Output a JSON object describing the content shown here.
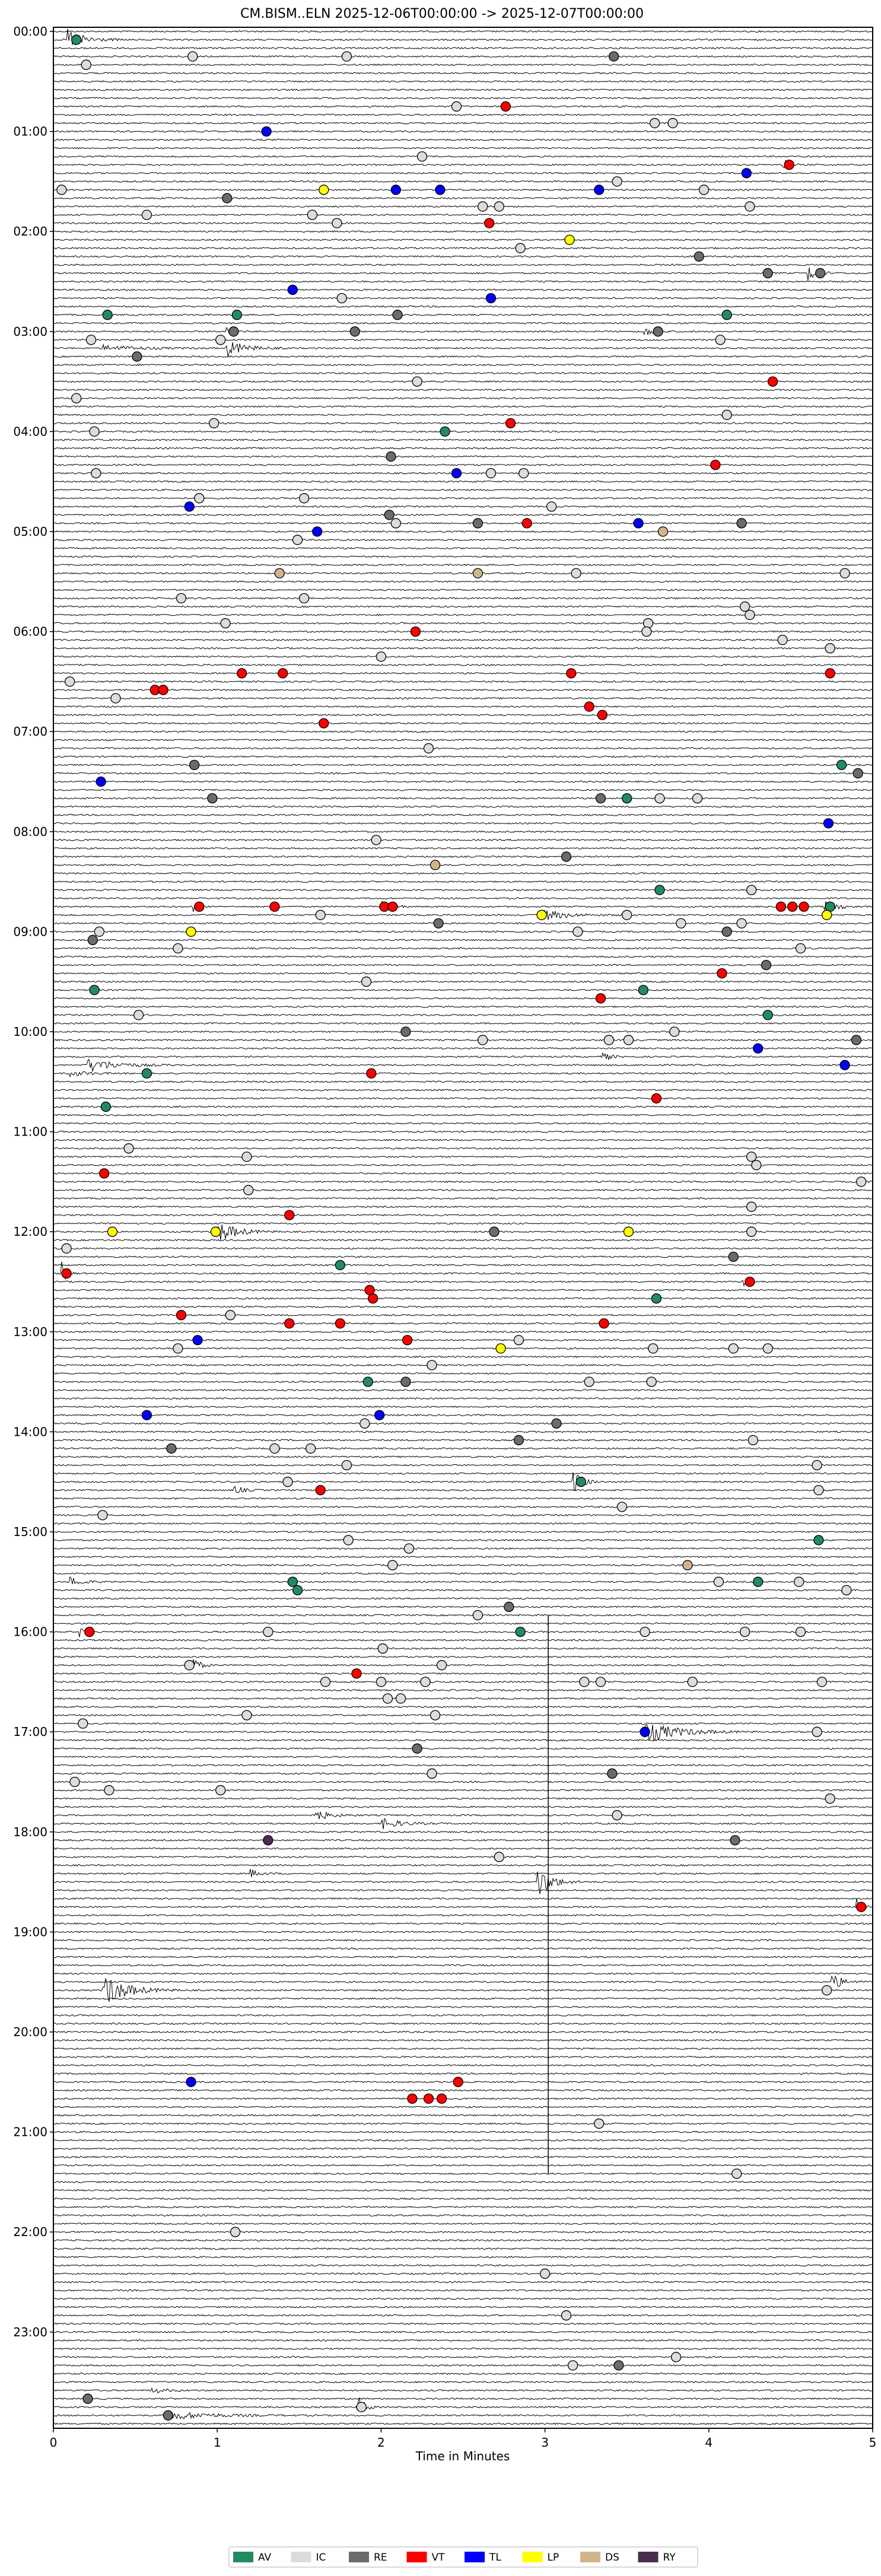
{
  "chart_data": {
    "type": "scatter",
    "subtype": "helicorder",
    "title": "CM.BISM..ELN  2025-12-06T00:00:00 -> 2025-12-07T00:00:00",
    "xlabel": "Time in Minutes",
    "xlim": [
      0,
      5
    ],
    "xticks": [
      "0",
      "1",
      "2",
      "3",
      "4",
      "5"
    ],
    "row_minutes": 5,
    "row_count": 288,
    "hour_labels": [
      "00:00",
      "01:00",
      "02:00",
      "03:00",
      "04:00",
      "05:00",
      "06:00",
      "07:00",
      "08:00",
      "09:00",
      "10:00",
      "11:00",
      "12:00",
      "13:00",
      "14:00",
      "15:00",
      "16:00",
      "17:00",
      "18:00",
      "19:00",
      "20:00",
      "21:00",
      "22:00",
      "23:00"
    ],
    "legend": {
      "placement": "bottom-center",
      "entries": [
        {
          "label": "AV",
          "color": "#238b62"
        },
        {
          "label": "IC",
          "color": "#dcdcdc"
        },
        {
          "label": "RE",
          "color": "#6b6b6b"
        },
        {
          "label": "VT",
          "color": "#ff0000"
        },
        {
          "label": "TL",
          "color": "#0000ff"
        },
        {
          "label": "LP",
          "color": "#ffff00"
        },
        {
          "label": "DS",
          "color": "#d2b48c"
        },
        {
          "label": "RY",
          "color": "#4b2e4f"
        }
      ]
    },
    "event_fields": [
      "row",
      "minute",
      "class"
    ],
    "events": [
      [
        1,
        0.14,
        "AV"
      ],
      [
        3,
        0.85,
        "IC"
      ],
      [
        3,
        1.79,
        "IC"
      ],
      [
        3,
        3.42,
        "RE"
      ],
      [
        4,
        0.2,
        "IC"
      ],
      [
        9,
        2.46,
        "IC"
      ],
      [
        9,
        2.76,
        "VT"
      ],
      [
        11,
        3.67,
        "IC"
      ],
      [
        11,
        3.78,
        "IC"
      ],
      [
        12,
        1.3,
        "TL"
      ],
      [
        15,
        2.25,
        "IC"
      ],
      [
        16,
        4.49,
        "VT"
      ],
      [
        17,
        4.23,
        "TL"
      ],
      [
        18,
        3.44,
        "IC"
      ],
      [
        19,
        0.05,
        "IC"
      ],
      [
        19,
        1.65,
        "LP"
      ],
      [
        19,
        2.09,
        "TL"
      ],
      [
        19,
        2.36,
        "TL"
      ],
      [
        19,
        3.33,
        "TL"
      ],
      [
        19,
        3.97,
        "IC"
      ],
      [
        20,
        1.06,
        "RE"
      ],
      [
        21,
        2.62,
        "IC"
      ],
      [
        21,
        2.72,
        "IC"
      ],
      [
        21,
        4.25,
        "IC"
      ],
      [
        22,
        0.57,
        "IC"
      ],
      [
        22,
        1.58,
        "IC"
      ],
      [
        23,
        1.73,
        "IC"
      ],
      [
        23,
        2.66,
        "VT"
      ],
      [
        25,
        3.15,
        "LP"
      ],
      [
        26,
        2.85,
        "IC"
      ],
      [
        27,
        3.94,
        "RE"
      ],
      [
        29,
        4.36,
        "RE"
      ],
      [
        29,
        4.68,
        "RE"
      ],
      [
        31,
        1.46,
        "TL"
      ],
      [
        32,
        1.76,
        "IC"
      ],
      [
        32,
        2.67,
        "TL"
      ],
      [
        34,
        0.33,
        "AV"
      ],
      [
        34,
        1.12,
        "AV"
      ],
      [
        34,
        2.1,
        "RE"
      ],
      [
        34,
        4.11,
        "AV"
      ],
      [
        36,
        1.1,
        "RE"
      ],
      [
        36,
        1.84,
        "RE"
      ],
      [
        36,
        3.69,
        "RE"
      ],
      [
        37,
        0.23,
        "IC"
      ],
      [
        37,
        1.02,
        "IC"
      ],
      [
        37,
        4.07,
        "IC"
      ],
      [
        39,
        0.51,
        "RE"
      ],
      [
        42,
        2.22,
        "IC"
      ],
      [
        42,
        4.39,
        "VT"
      ],
      [
        44,
        0.14,
        "IC"
      ],
      [
        46,
        4.11,
        "IC"
      ],
      [
        47,
        0.98,
        "IC"
      ],
      [
        47,
        2.79,
        "VT"
      ],
      [
        48,
        0.25,
        "IC"
      ],
      [
        48,
        2.39,
        "AV"
      ],
      [
        51,
        2.06,
        "RE"
      ],
      [
        52,
        4.04,
        "VT"
      ],
      [
        53,
        0.26,
        "IC"
      ],
      [
        53,
        2.46,
        "TL"
      ],
      [
        53,
        2.67,
        "IC"
      ],
      [
        53,
        2.87,
        "IC"
      ],
      [
        56,
        0.89,
        "IC"
      ],
      [
        56,
        1.53,
        "IC"
      ],
      [
        57,
        0.83,
        "TL"
      ],
      [
        57,
        3.04,
        "IC"
      ],
      [
        58,
        2.05,
        "RE"
      ],
      [
        59,
        2.09,
        "IC"
      ],
      [
        59,
        2.59,
        "RE"
      ],
      [
        59,
        2.89,
        "VT"
      ],
      [
        59,
        3.57,
        "TL"
      ],
      [
        59,
        4.2,
        "RE"
      ],
      [
        60,
        1.61,
        "TL"
      ],
      [
        60,
        3.72,
        "DS"
      ],
      [
        61,
        1.49,
        "IC"
      ],
      [
        65,
        1.38,
        "DS"
      ],
      [
        65,
        2.59,
        "DS"
      ],
      [
        65,
        3.19,
        "IC"
      ],
      [
        65,
        4.83,
        "IC"
      ],
      [
        68,
        0.78,
        "IC"
      ],
      [
        68,
        1.53,
        "IC"
      ],
      [
        69,
        4.22,
        "IC"
      ],
      [
        70,
        4.25,
        "IC"
      ],
      [
        71,
        1.05,
        "IC"
      ],
      [
        71,
        3.63,
        "IC"
      ],
      [
        72,
        2.21,
        "VT"
      ],
      [
        72,
        3.62,
        "IC"
      ],
      [
        73,
        4.45,
        "IC"
      ],
      [
        74,
        4.74,
        "IC"
      ],
      [
        75,
        2.0,
        "IC"
      ],
      [
        77,
        1.15,
        "VT"
      ],
      [
        77,
        1.4,
        "VT"
      ],
      [
        77,
        3.16,
        "VT"
      ],
      [
        77,
        4.74,
        "VT"
      ],
      [
        78,
        0.1,
        "IC"
      ],
      [
        79,
        0.62,
        "VT"
      ],
      [
        79,
        0.67,
        "VT"
      ],
      [
        80,
        0.38,
        "IC"
      ],
      [
        81,
        3.27,
        "VT"
      ],
      [
        82,
        3.35,
        "VT"
      ],
      [
        83,
        1.65,
        "VT"
      ],
      [
        86,
        2.29,
        "IC"
      ],
      [
        88,
        0.86,
        "RE"
      ],
      [
        88,
        4.81,
        "AV"
      ],
      [
        89,
        4.91,
        "RE"
      ],
      [
        90,
        0.29,
        "TL"
      ],
      [
        92,
        0.97,
        "RE"
      ],
      [
        92,
        3.34,
        "RE"
      ],
      [
        92,
        3.5,
        "AV"
      ],
      [
        92,
        3.7,
        "IC"
      ],
      [
        92,
        3.93,
        "IC"
      ],
      [
        95,
        4.73,
        "TL"
      ],
      [
        97,
        1.97,
        "IC"
      ],
      [
        99,
        3.13,
        "RE"
      ],
      [
        100,
        2.33,
        "DS"
      ],
      [
        103,
        3.7,
        "AV"
      ],
      [
        103,
        4.26,
        "IC"
      ],
      [
        105,
        0.89,
        "VT"
      ],
      [
        105,
        1.35,
        "VT"
      ],
      [
        105,
        2.02,
        "VT"
      ],
      [
        105,
        2.07,
        "VT"
      ],
      [
        105,
        4.44,
        "VT"
      ],
      [
        105,
        4.51,
        "VT"
      ],
      [
        105,
        4.58,
        "VT"
      ],
      [
        105,
        4.74,
        "AV"
      ],
      [
        106,
        1.63,
        "IC"
      ],
      [
        106,
        2.98,
        "LP"
      ],
      [
        106,
        3.5,
        "IC"
      ],
      [
        106,
        4.72,
        "LP"
      ],
      [
        107,
        2.35,
        "RE"
      ],
      [
        107,
        3.83,
        "IC"
      ],
      [
        107,
        4.2,
        "IC"
      ],
      [
        108,
        0.28,
        "IC"
      ],
      [
        108,
        0.84,
        "LP"
      ],
      [
        108,
        3.2,
        "IC"
      ],
      [
        108,
        4.11,
        "RE"
      ],
      [
        109,
        0.24,
        "RE"
      ],
      [
        110,
        0.76,
        "IC"
      ],
      [
        110,
        4.56,
        "IC"
      ],
      [
        112,
        4.35,
        "RE"
      ],
      [
        113,
        4.08,
        "VT"
      ],
      [
        114,
        1.91,
        "IC"
      ],
      [
        115,
        0.25,
        "AV"
      ],
      [
        115,
        3.6,
        "AV"
      ],
      [
        116,
        3.34,
        "VT"
      ],
      [
        118,
        0.52,
        "IC"
      ],
      [
        118,
        4.36,
        "AV"
      ],
      [
        120,
        2.15,
        "RE"
      ],
      [
        120,
        3.79,
        "IC"
      ],
      [
        121,
        2.62,
        "IC"
      ],
      [
        121,
        3.39,
        "IC"
      ],
      [
        121,
        3.51,
        "IC"
      ],
      [
        121,
        4.9,
        "RE"
      ],
      [
        122,
        4.3,
        "TL"
      ],
      [
        124,
        4.83,
        "TL"
      ],
      [
        125,
        0.57,
        "AV"
      ],
      [
        125,
        1.94,
        "VT"
      ],
      [
        128,
        3.68,
        "VT"
      ],
      [
        129,
        0.32,
        "AV"
      ],
      [
        134,
        0.46,
        "IC"
      ],
      [
        135,
        1.18,
        "IC"
      ],
      [
        135,
        4.26,
        "IC"
      ],
      [
        136,
        4.29,
        "IC"
      ],
      [
        137,
        0.31,
        "VT"
      ],
      [
        138,
        4.93,
        "IC"
      ],
      [
        139,
        1.19,
        "IC"
      ],
      [
        141,
        4.26,
        "IC"
      ],
      [
        142,
        1.44,
        "VT"
      ],
      [
        144,
        0.36,
        "LP"
      ],
      [
        144,
        0.99,
        "LP"
      ],
      [
        144,
        2.69,
        "RE"
      ],
      [
        144,
        3.51,
        "LP"
      ],
      [
        144,
        4.26,
        "IC"
      ],
      [
        146,
        0.08,
        "IC"
      ],
      [
        147,
        4.15,
        "RE"
      ],
      [
        148,
        1.75,
        "AV"
      ],
      [
        149,
        0.08,
        "VT"
      ],
      [
        150,
        4.25,
        "VT"
      ],
      [
        151,
        1.93,
        "VT"
      ],
      [
        152,
        1.95,
        "VT"
      ],
      [
        152,
        3.68,
        "AV"
      ],
      [
        154,
        0.78,
        "VT"
      ],
      [
        154,
        1.08,
        "IC"
      ],
      [
        155,
        1.44,
        "VT"
      ],
      [
        155,
        1.75,
        "VT"
      ],
      [
        155,
        3.36,
        "VT"
      ],
      [
        157,
        0.88,
        "TL"
      ],
      [
        157,
        2.16,
        "VT"
      ],
      [
        157,
        2.84,
        "IC"
      ],
      [
        158,
        0.76,
        "IC"
      ],
      [
        158,
        2.73,
        "LP"
      ],
      [
        158,
        3.66,
        "IC"
      ],
      [
        158,
        4.15,
        "IC"
      ],
      [
        158,
        4.36,
        "IC"
      ],
      [
        160,
        2.31,
        "IC"
      ],
      [
        162,
        1.92,
        "AV"
      ],
      [
        162,
        2.15,
        "RE"
      ],
      [
        162,
        3.27,
        "IC"
      ],
      [
        162,
        3.65,
        "IC"
      ],
      [
        166,
        0.57,
        "TL"
      ],
      [
        166,
        1.99,
        "TL"
      ],
      [
        167,
        1.9,
        "IC"
      ],
      [
        167,
        3.07,
        "RE"
      ],
      [
        169,
        2.84,
        "RE"
      ],
      [
        169,
        4.27,
        "IC"
      ],
      [
        170,
        0.72,
        "RE"
      ],
      [
        170,
        1.35,
        "IC"
      ],
      [
        170,
        1.57,
        "IC"
      ],
      [
        172,
        1.79,
        "IC"
      ],
      [
        172,
        4.66,
        "IC"
      ],
      [
        174,
        1.43,
        "IC"
      ],
      [
        174,
        3.22,
        "AV"
      ],
      [
        175,
        1.63,
        "VT"
      ],
      [
        175,
        4.67,
        "IC"
      ],
      [
        177,
        3.47,
        "IC"
      ],
      [
        178,
        0.3,
        "IC"
      ],
      [
        181,
        1.8,
        "IC"
      ],
      [
        181,
        4.67,
        "AV"
      ],
      [
        182,
        2.17,
        "IC"
      ],
      [
        184,
        2.07,
        "IC"
      ],
      [
        184,
        3.87,
        "DS"
      ],
      [
        186,
        1.46,
        "AV"
      ],
      [
        186,
        4.06,
        "IC"
      ],
      [
        186,
        4.3,
        "AV"
      ],
      [
        186,
        4.55,
        "IC"
      ],
      [
        187,
        1.49,
        "AV"
      ],
      [
        187,
        4.84,
        "IC"
      ],
      [
        189,
        2.78,
        "RE"
      ],
      [
        190,
        2.59,
        "IC"
      ],
      [
        192,
        0.22,
        "VT"
      ],
      [
        192,
        1.31,
        "IC"
      ],
      [
        192,
        2.85,
        "AV"
      ],
      [
        192,
        3.61,
        "IC"
      ],
      [
        192,
        4.22,
        "IC"
      ],
      [
        192,
        4.56,
        "IC"
      ],
      [
        194,
        2.01,
        "IC"
      ],
      [
        196,
        0.83,
        "IC"
      ],
      [
        196,
        2.37,
        "IC"
      ],
      [
        197,
        1.85,
        "VT"
      ],
      [
        198,
        1.66,
        "IC"
      ],
      [
        198,
        2.0,
        "IC"
      ],
      [
        198,
        2.27,
        "IC"
      ],
      [
        198,
        3.24,
        "IC"
      ],
      [
        198,
        3.34,
        "IC"
      ],
      [
        198,
        3.9,
        "IC"
      ],
      [
        198,
        4.69,
        "IC"
      ],
      [
        200,
        2.04,
        "IC"
      ],
      [
        200,
        2.12,
        "IC"
      ],
      [
        202,
        1.18,
        "IC"
      ],
      [
        202,
        2.33,
        "IC"
      ],
      [
        203,
        0.18,
        "IC"
      ],
      [
        204,
        3.61,
        "TL"
      ],
      [
        204,
        4.66,
        "IC"
      ],
      [
        206,
        2.22,
        "RE"
      ],
      [
        209,
        2.31,
        "IC"
      ],
      [
        209,
        3.41,
        "RE"
      ],
      [
        210,
        0.13,
        "IC"
      ],
      [
        211,
        0.34,
        "IC"
      ],
      [
        211,
        1.02,
        "IC"
      ],
      [
        212,
        4.74,
        "IC"
      ],
      [
        214,
        3.44,
        "IC"
      ],
      [
        217,
        1.31,
        "RY"
      ],
      [
        217,
        4.16,
        "RE"
      ],
      [
        219,
        2.72,
        "IC"
      ],
      [
        225,
        4.93,
        "VT"
      ],
      [
        235,
        4.72,
        "IC"
      ],
      [
        246,
        0.84,
        "TL"
      ],
      [
        246,
        2.47,
        "VT"
      ],
      [
        248,
        2.19,
        "VT"
      ],
      [
        248,
        2.29,
        "VT"
      ],
      [
        248,
        2.37,
        "VT"
      ],
      [
        251,
        3.33,
        "IC"
      ],
      [
        257,
        4.17,
        "IC"
      ],
      [
        264,
        1.11,
        "IC"
      ],
      [
        269,
        3.0,
        "IC"
      ],
      [
        274,
        3.13,
        "IC"
      ],
      [
        279,
        3.8,
        "IC"
      ],
      [
        280,
        3.17,
        "IC"
      ],
      [
        280,
        3.45,
        "RE"
      ],
      [
        284,
        0.21,
        "RE"
      ],
      [
        285,
        1.88,
        "IC"
      ],
      [
        286,
        0.7,
        "RE"
      ]
    ],
    "burst_fields": [
      "row",
      "start_minute",
      "end_minute",
      "relative_amplitude"
    ],
    "bursts": [
      [
        1,
        0.08,
        0.45,
        4
      ],
      [
        36,
        1.05,
        1.2,
        2
      ],
      [
        38,
        1.05,
        1.45,
        3
      ],
      [
        38,
        0.3,
        1.05,
        1
      ],
      [
        16,
        4.45,
        4.55,
        3
      ],
      [
        29,
        4.6,
        4.8,
        3
      ],
      [
        36,
        3.6,
        3.8,
        2
      ],
      [
        105,
        2.0,
        2.2,
        2.5
      ],
      [
        106,
        2.98,
        3.5,
        2
      ],
      [
        105,
        0.85,
        0.95,
        3
      ],
      [
        105,
        4.7,
        5.0,
        2
      ],
      [
        123,
        3.35,
        3.5,
        2
      ],
      [
        124,
        0.2,
        0.8,
        2.5
      ],
      [
        125,
        0.1,
        0.5,
        1
      ],
      [
        144,
        1.0,
        1.4,
        4
      ],
      [
        149,
        0.05,
        0.15,
        4
      ],
      [
        150,
        4.2,
        4.3,
        3
      ],
      [
        155,
        1.4,
        1.5,
        3
      ],
      [
        174,
        3.15,
        3.35,
        6
      ],
      [
        175,
        1.1,
        1.3,
        1.5
      ],
      [
        186,
        0.1,
        0.35,
        2
      ],
      [
        192,
        0.15,
        0.3,
        2
      ],
      [
        196,
        0.85,
        1.0,
        3
      ],
      [
        198,
        2.25,
        2.35,
        2
      ],
      [
        204,
        3.6,
        4.3,
        4
      ],
      [
        214,
        1.6,
        1.9,
        2
      ],
      [
        215,
        2.0,
        2.4,
        2
      ],
      [
        222,
        2.95,
        3.25,
        6
      ],
      [
        221,
        1.2,
        1.4,
        1.5
      ],
      [
        235,
        0.3,
        0.8,
        6
      ],
      [
        234,
        4.75,
        5.0,
        3
      ],
      [
        225,
        4.9,
        5.0,
        3
      ],
      [
        285,
        1.85,
        2.0,
        5
      ],
      [
        286,
        0.7,
        1.6,
        1.5
      ],
      [
        283,
        0.6,
        0.9,
        1
      ]
    ],
    "clipped_spike": {
      "minute": 3.02,
      "from_row": 190,
      "to_row": 257
    }
  }
}
